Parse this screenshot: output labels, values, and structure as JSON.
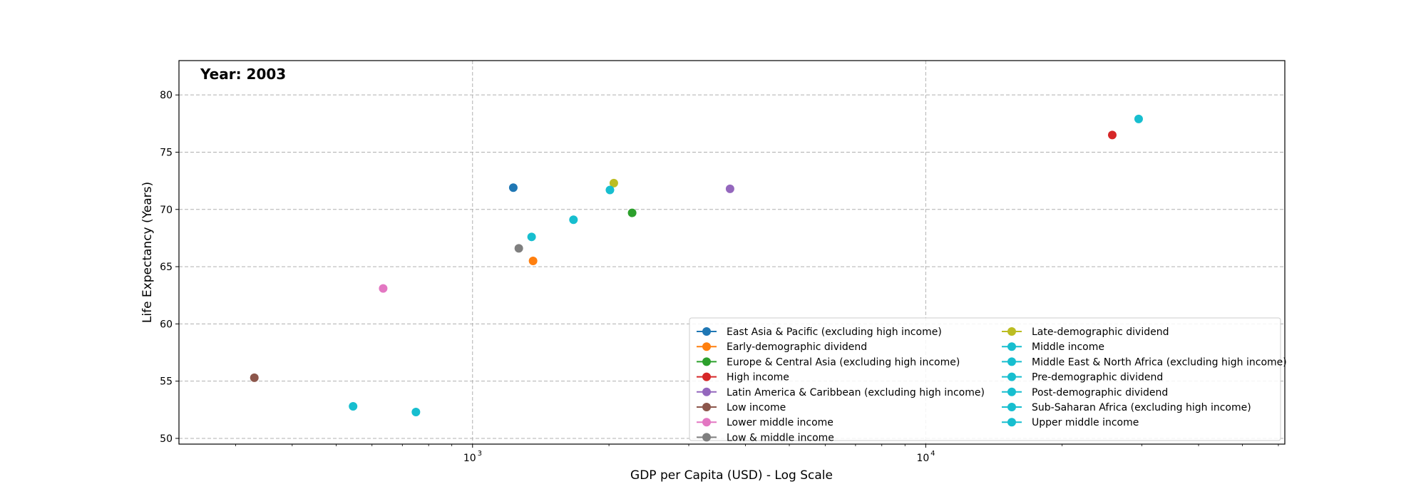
{
  "chart_data": {
    "type": "scatter",
    "title": "",
    "annotation": "Year: 2003",
    "xlabel": "GDP per Capita (USD) - Log Scale",
    "ylabel": "Life Expectancy (Years)",
    "xscale": "log",
    "xlim": [
      225,
      62000
    ],
    "ylim": [
      49.5,
      83
    ],
    "x_ticks": [
      {
        "value": 1000,
        "label": "10",
        "exp": "3"
      },
      {
        "value": 10000,
        "label": "10",
        "exp": "4"
      }
    ],
    "y_ticks": [
      50,
      55,
      60,
      65,
      70,
      75,
      80
    ],
    "grid": true,
    "legend": {
      "position": "lower-right",
      "columns": 2
    },
    "series": [
      {
        "name": "East Asia & Pacific (excluding high income)",
        "color": "#1f77b4",
        "x": 1230,
        "y": 71.9
      },
      {
        "name": "Early-demographic dividend",
        "color": "#ff7f0e",
        "x": 1360,
        "y": 65.5
      },
      {
        "name": "Europe & Central Asia (excluding high income)",
        "color": "#2ca02c",
        "x": 2250,
        "y": 69.7
      },
      {
        "name": "High income",
        "color": "#d62728",
        "x": 25800,
        "y": 76.5
      },
      {
        "name": "Latin America & Caribbean (excluding high income)",
        "color": "#9467bd",
        "x": 3700,
        "y": 71.8
      },
      {
        "name": "Low income",
        "color": "#8c564b",
        "x": 330,
        "y": 55.3
      },
      {
        "name": "Lower middle income",
        "color": "#e377c2",
        "x": 635,
        "y": 63.1
      },
      {
        "name": "Low & middle income",
        "color": "#7f7f7f",
        "x": 1265,
        "y": 66.6
      },
      {
        "name": "Late-demographic dividend",
        "color": "#bcbd22",
        "x": 2050,
        "y": 72.3
      },
      {
        "name": "Middle income",
        "color": "#17becf",
        "x": 1350,
        "y": 67.6
      },
      {
        "name": "Middle East & North Africa (excluding high income)",
        "color": "#17becf",
        "x": 1670,
        "y": 69.1
      },
      {
        "name": "Pre-demographic dividend",
        "color": "#17becf",
        "x": 545,
        "y": 52.8
      },
      {
        "name": "Post-demographic dividend",
        "color": "#17becf",
        "x": 29500,
        "y": 77.9
      },
      {
        "name": "Sub-Saharan Africa (excluding high income)",
        "color": "#17becf",
        "x": 750,
        "y": 52.3
      },
      {
        "name": "Upper middle income",
        "color": "#17becf",
        "x": 2010,
        "y": 71.7
      }
    ]
  }
}
